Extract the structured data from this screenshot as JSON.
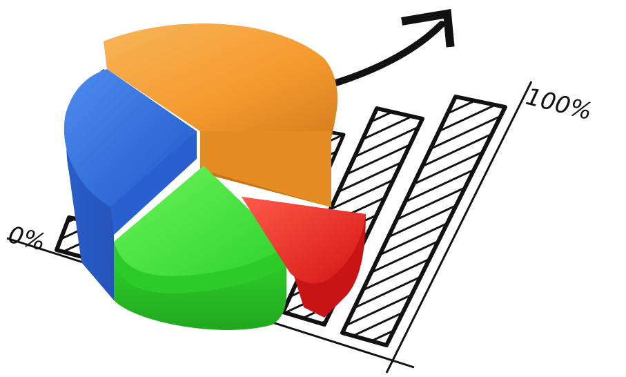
{
  "scene": {
    "description_labels": {
      "min_label": "0%",
      "max_label": "100%"
    },
    "colors": {
      "orange": "#f5a03a",
      "blue": "#2f6fdd",
      "green": "#39e03a",
      "red": "#e8231f",
      "ink": "#111111",
      "background": "#ffffff"
    },
    "icons": [
      "trend-arrow-icon",
      "pie-chart-3d",
      "hatched-bar-chart"
    ]
  }
}
